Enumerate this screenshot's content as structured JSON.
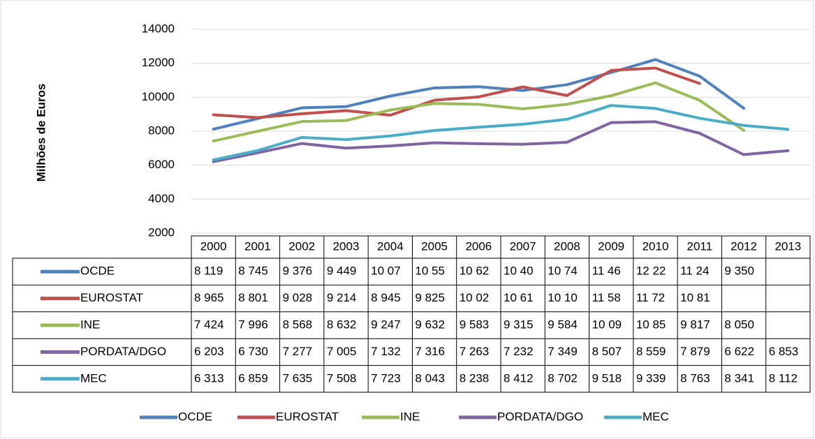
{
  "chart_data": {
    "type": "line",
    "y_label": "Milhões de Euros",
    "categories": [
      "2000",
      "2001",
      "2002",
      "2003",
      "2004",
      "2005",
      "2006",
      "2007",
      "2008",
      "2009",
      "2010",
      "2011",
      "2012",
      "2013"
    ],
    "series": [
      {
        "name": "OCDE",
        "color": "#4f81bd",
        "values": [
          8119,
          8745,
          9376,
          9449,
          10070,
          10550,
          10620,
          10400,
          10740,
          11460,
          12220,
          11240,
          9350,
          null
        ],
        "value_labels": [
          "8 119",
          "8 745",
          "9 376",
          "9 449",
          "10 07",
          "10 55",
          "10 62",
          "10 40",
          "10 74",
          "11 46",
          "12 22",
          "11 24",
          "9 350",
          null
        ]
      },
      {
        "name": "EUROSTAT",
        "color": "#c0504d",
        "values": [
          8965,
          8801,
          9028,
          9214,
          8945,
          9825,
          10020,
          10610,
          10100,
          11580,
          11720,
          10810,
          null,
          null
        ],
        "value_labels": [
          "8 965",
          "8 801",
          "9 028",
          "9 214",
          "8 945",
          "9 825",
          "10 02",
          "10 61",
          "10 10",
          "11 58",
          "11 72",
          "10 81",
          null,
          null
        ]
      },
      {
        "name": "INE",
        "color": "#9bbb59",
        "values": [
          7424,
          7996,
          8568,
          8632,
          9247,
          9632,
          9583,
          9315,
          9584,
          10090,
          10850,
          9817,
          8050,
          null
        ],
        "value_labels": [
          "7 424",
          "7 996",
          "8 568",
          "8 632",
          "9 247",
          "9 632",
          "9 583",
          "9 315",
          "9 584",
          "10 09",
          "10 85",
          "9 817",
          "8 050",
          null
        ]
      },
      {
        "name": "PORDATA/DGO",
        "color": "#8064a2",
        "values": [
          6203,
          6730,
          7277,
          7005,
          7132,
          7316,
          7263,
          7232,
          7349,
          8507,
          8559,
          7879,
          6622,
          6853
        ],
        "value_labels": [
          "6 203",
          "6 730",
          "7 277",
          "7 005",
          "7 132",
          "7 316",
          "7 263",
          "7 232",
          "7 349",
          "8 507",
          "8 559",
          "7 879",
          "6 622",
          "6 853"
        ]
      },
      {
        "name": "MEC",
        "color": "#4bacc6",
        "values": [
          6313,
          6859,
          7635,
          7508,
          7723,
          8043,
          8238,
          8412,
          8702,
          9518,
          9339,
          8763,
          8341,
          8112
        ],
        "value_labels": [
          "6 313",
          "6 859",
          "7 635",
          "7 508",
          "7 723",
          "8 043",
          "8 238",
          "8 412",
          "8 702",
          "9 518",
          "9 339",
          "8 763",
          "8 341",
          "8 112"
        ]
      }
    ],
    "ylim": [
      2000,
      14000
    ],
    "yticks": [
      2000,
      4000,
      6000,
      8000,
      10000,
      12000,
      14000
    ],
    "grid": true,
    "legend": "bottom",
    "data_table": true
  }
}
